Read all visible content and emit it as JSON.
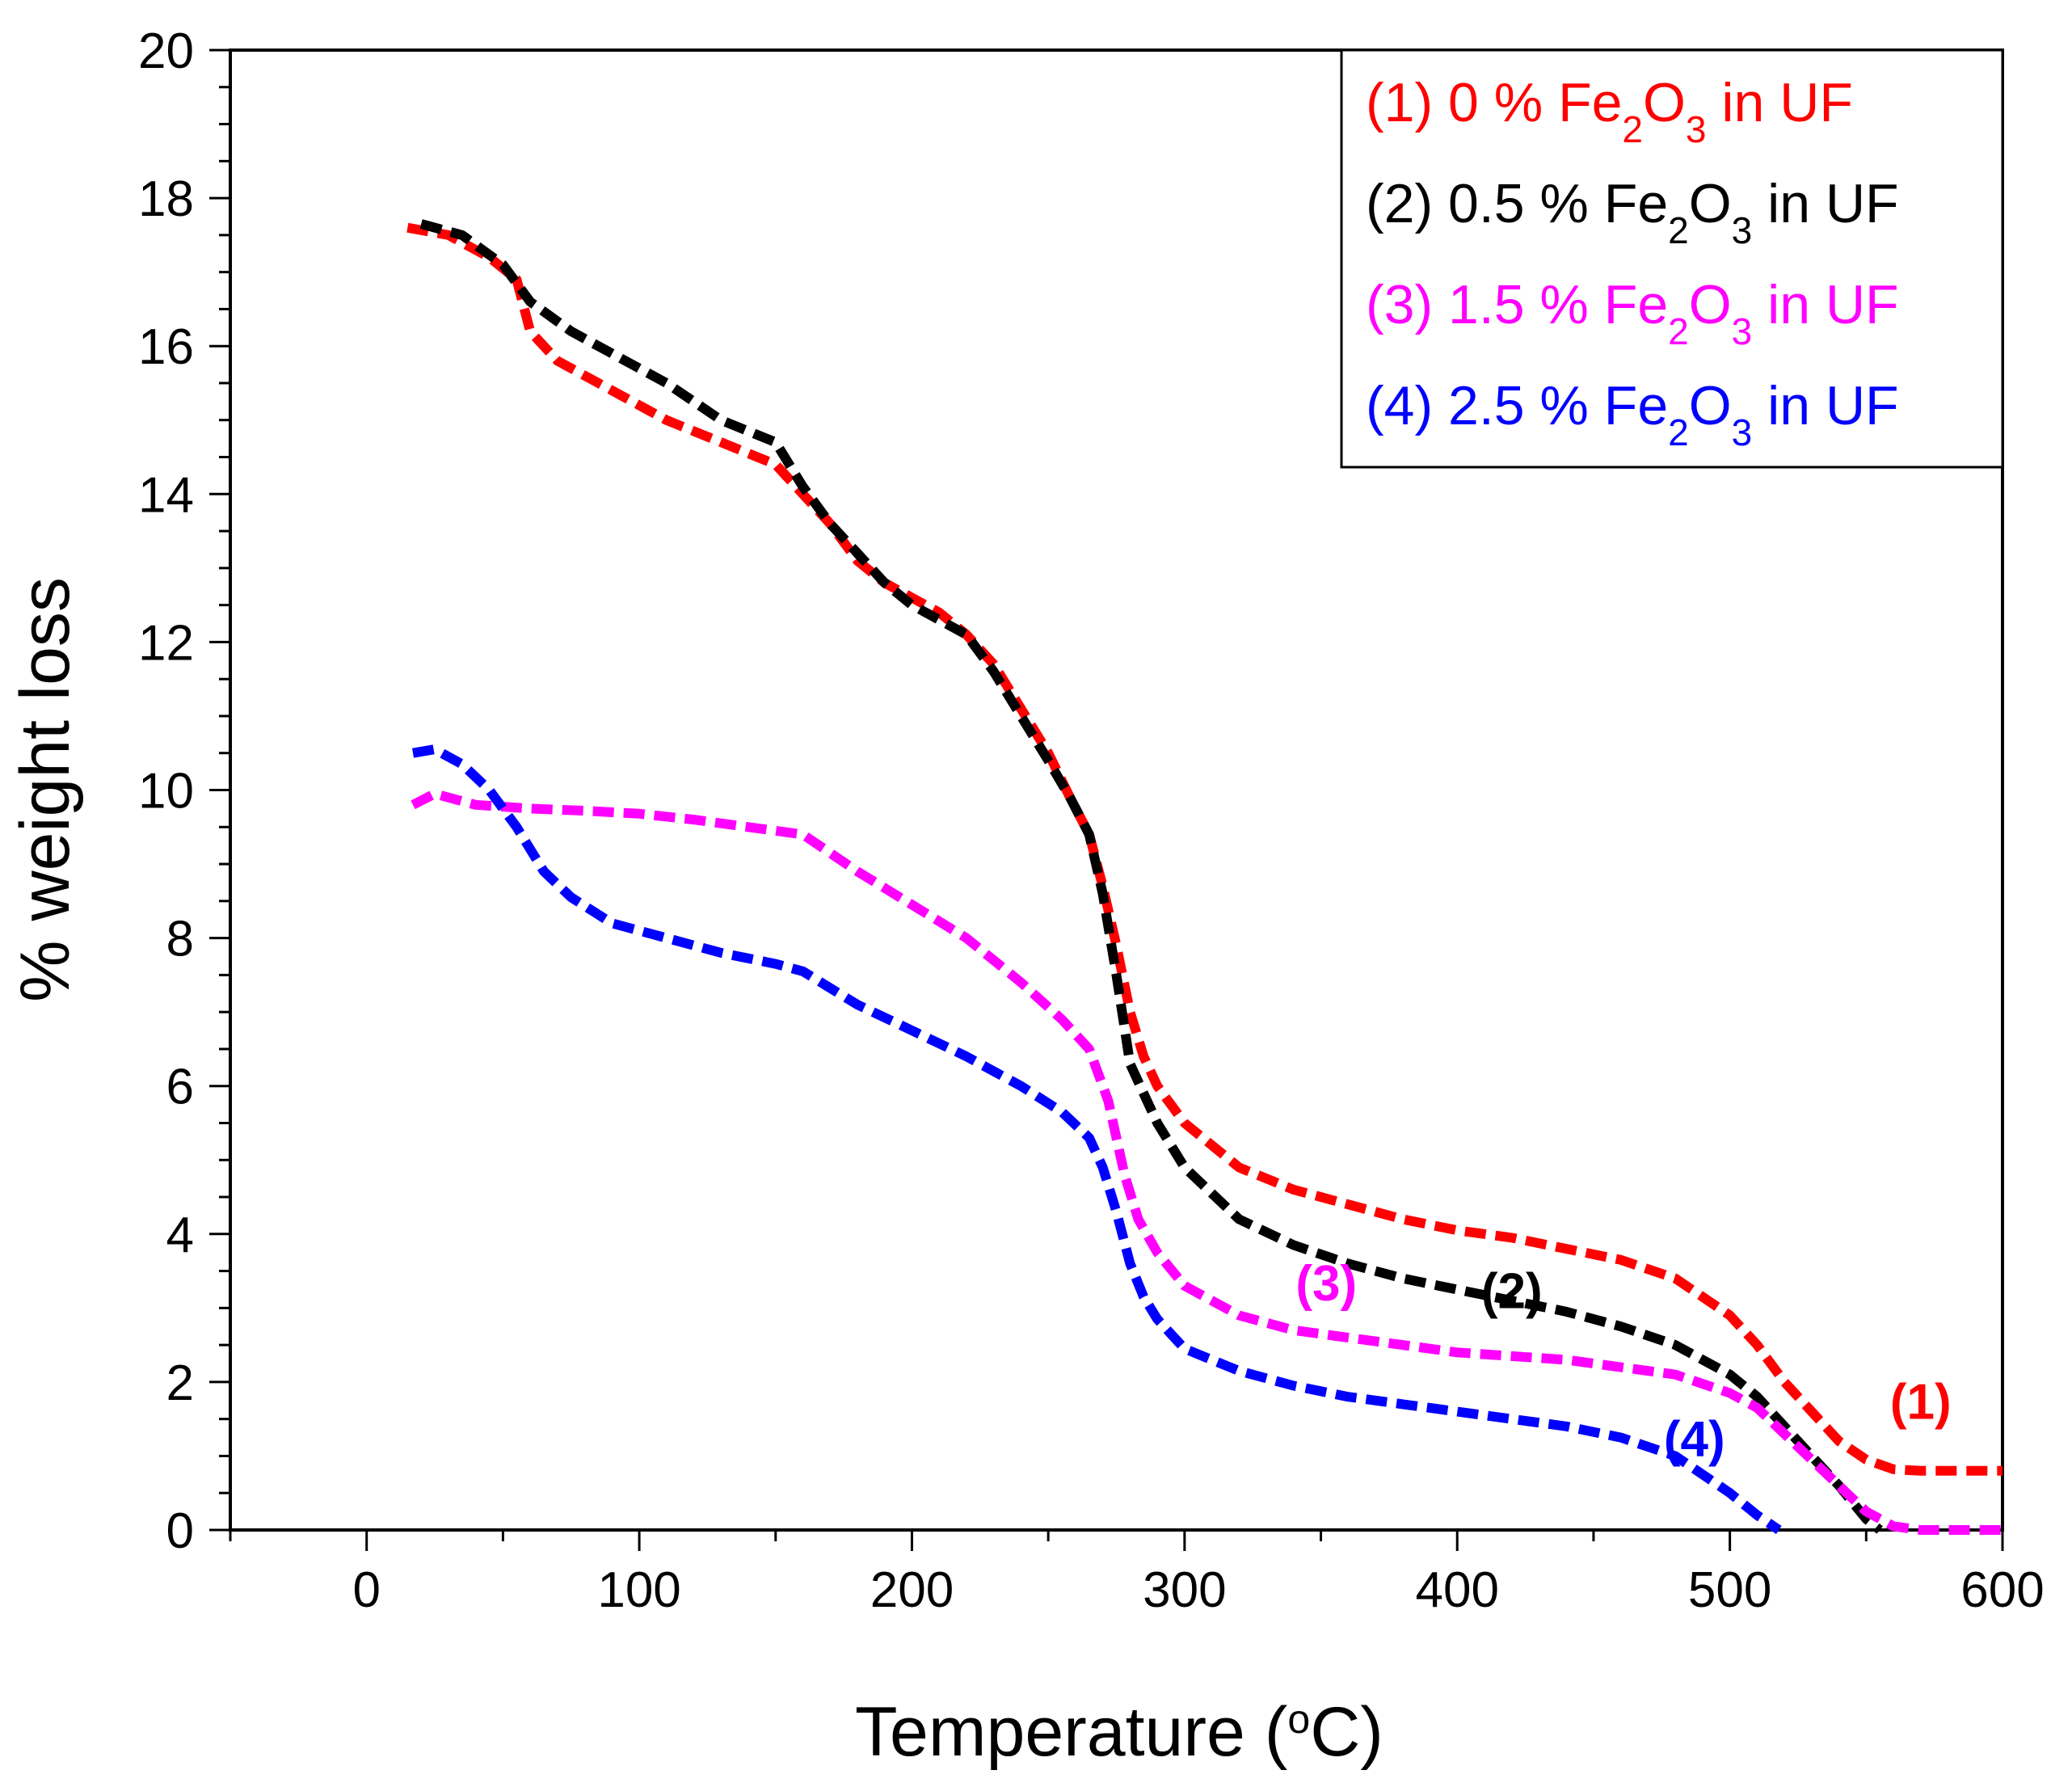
{
  "chart_data": {
    "type": "line",
    "title": "",
    "xlabel": "Temperature (",
    "xlabel_unit_sup": "o",
    "xlabel_unit": "C)",
    "ylabel": "% weight loss",
    "xlim": [
      -50,
      600
    ],
    "ylim": [
      0,
      20
    ],
    "xticks": [
      0,
      100,
      200,
      300,
      400,
      500,
      600
    ],
    "yticks": [
      0,
      2,
      4,
      6,
      8,
      10,
      12,
      14,
      16,
      18,
      20
    ],
    "grid": false,
    "legend_position": "top-right",
    "series": [
      {
        "name": "(1) 0 % Fe2O3  in UF",
        "legend": {
          "prefix": "(1) 0 % Fe",
          "sub1": "2",
          "mid": "O",
          "sub2": "3",
          "suffix": "   in UF"
        },
        "label": "(1)",
        "label_at": [
          570,
          1.5
        ],
        "color": "#ff0000",
        "x": [
          15,
          30,
          45,
          55,
          60,
          70,
          90,
          110,
          130,
          150,
          160,
          170,
          180,
          190,
          200,
          210,
          220,
          230,
          240,
          250,
          258,
          265,
          270,
          275,
          280,
          285,
          290,
          300,
          320,
          340,
          360,
          380,
          400,
          420,
          440,
          460,
          480,
          490,
          500,
          510,
          520,
          530,
          540,
          550,
          560,
          570,
          580,
          600
        ],
        "y": [
          17.6,
          17.5,
          17.2,
          16.9,
          16.2,
          15.8,
          15.4,
          15.0,
          14.7,
          14.4,
          14.0,
          13.6,
          13.1,
          12.8,
          12.6,
          12.4,
          12.1,
          11.7,
          11.1,
          10.5,
          9.9,
          9.4,
          8.7,
          7.9,
          7.0,
          6.4,
          6.0,
          5.5,
          4.9,
          4.6,
          4.4,
          4.2,
          4.05,
          3.95,
          3.8,
          3.65,
          3.4,
          3.15,
          2.9,
          2.5,
          2.0,
          1.6,
          1.2,
          0.95,
          0.82,
          0.8,
          0.8,
          0.8
        ]
      },
      {
        "name": "(2) 0.5 % Fe2O3 in UF",
        "legend": {
          "prefix": "(2) 0.5 % Fe",
          "sub1": "2",
          "mid": "O",
          "sub2": "3",
          "suffix": " in UF"
        },
        "label": "(2)",
        "label_at": [
          420,
          3.0
        ],
        "color": "#000000",
        "x": [
          20,
          35,
          50,
          60,
          75,
          90,
          110,
          130,
          150,
          160,
          170,
          180,
          190,
          200,
          210,
          220,
          230,
          240,
          250,
          258,
          265,
          270,
          275,
          280,
          285,
          290,
          300,
          320,
          340,
          360,
          380,
          400,
          420,
          440,
          460,
          480,
          500,
          510,
          520,
          530,
          540,
          550,
          555
        ],
        "y": [
          17.65,
          17.5,
          17.1,
          16.6,
          16.2,
          15.9,
          15.5,
          15.0,
          14.7,
          14.1,
          13.6,
          13.2,
          12.8,
          12.5,
          12.3,
          12.1,
          11.6,
          11.0,
          10.4,
          9.9,
          9.4,
          8.6,
          7.5,
          6.3,
          5.9,
          5.5,
          4.9,
          4.2,
          3.85,
          3.6,
          3.4,
          3.25,
          3.1,
          2.95,
          2.75,
          2.5,
          2.1,
          1.8,
          1.4,
          1.0,
          0.6,
          0.15,
          0.0
        ]
      },
      {
        "name": "(3) 1.5 % Fe2O3 in UF",
        "legend": {
          "prefix": "(3) 1.5 % Fe",
          "sub1": "2",
          "mid": "O",
          "sub2": "3",
          "suffix": " in UF"
        },
        "label": "(3)",
        "label_at": [
          352,
          3.1
        ],
        "color": "#ff00ff",
        "x": [
          17,
          25,
          40,
          60,
          80,
          100,
          120,
          140,
          160,
          180,
          200,
          220,
          240,
          255,
          265,
          272,
          278,
          283,
          290,
          300,
          320,
          340,
          360,
          380,
          400,
          420,
          440,
          460,
          480,
          500,
          510,
          520,
          530,
          540,
          550,
          560,
          570,
          580,
          600
        ],
        "y": [
          9.8,
          9.95,
          9.8,
          9.75,
          9.72,
          9.68,
          9.6,
          9.5,
          9.4,
          8.9,
          8.45,
          8.0,
          7.4,
          6.9,
          6.5,
          5.8,
          4.8,
          4.2,
          3.75,
          3.3,
          2.9,
          2.7,
          2.6,
          2.5,
          2.4,
          2.35,
          2.3,
          2.2,
          2.1,
          1.85,
          1.65,
          1.3,
          0.95,
          0.6,
          0.25,
          0.05,
          0.0,
          0.0,
          0.0
        ]
      },
      {
        "name": "(4) 2.5 % Fe2O3 in UF",
        "legend": {
          "prefix": "(4) 2.5 % Fe",
          "sub1": "2",
          "mid": "O",
          "sub2": "3",
          "suffix": " in UF"
        },
        "label": "(4)",
        "label_at": [
          487,
          1.0
        ],
        "color": "#0000ff",
        "x": [
          17,
          25,
          35,
          45,
          55,
          65,
          75,
          90,
          110,
          130,
          150,
          160,
          180,
          200,
          220,
          240,
          255,
          265,
          270,
          275,
          280,
          285,
          290,
          300,
          320,
          340,
          360,
          380,
          400,
          420,
          440,
          460,
          480,
          490,
          500,
          510,
          518
        ],
        "y": [
          10.5,
          10.55,
          10.35,
          10.0,
          9.5,
          8.9,
          8.55,
          8.2,
          8.0,
          7.8,
          7.65,
          7.55,
          7.1,
          6.75,
          6.4,
          6.0,
          5.65,
          5.3,
          4.9,
          4.3,
          3.6,
          3.15,
          2.85,
          2.45,
          2.15,
          1.95,
          1.8,
          1.7,
          1.6,
          1.5,
          1.4,
          1.25,
          1.0,
          0.75,
          0.5,
          0.2,
          0.0
        ]
      }
    ]
  }
}
